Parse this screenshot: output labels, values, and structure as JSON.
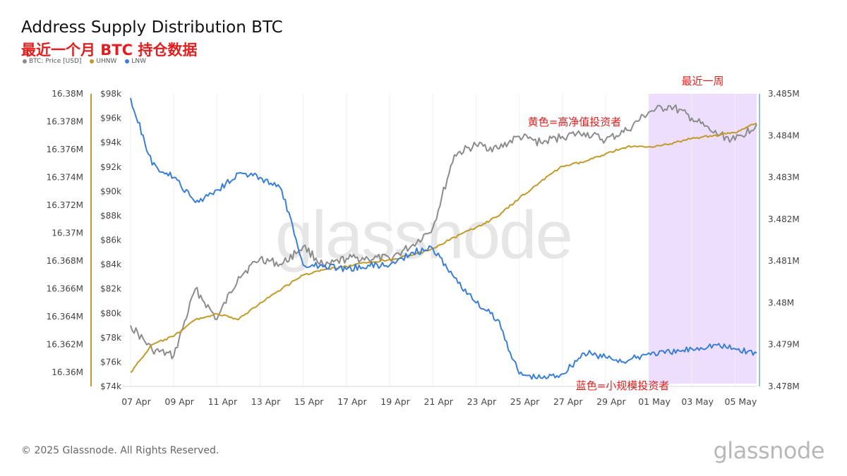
{
  "header": {
    "title": "Address Supply Distribution BTC",
    "subtitle": "最近一个月 BTC 持仓数据"
  },
  "legend": [
    {
      "label": "BTC: Price [USD]",
      "color": "#8c8c8c"
    },
    {
      "label": "UHNW",
      "color": "#c19a2a"
    },
    {
      "label": "LNW",
      "color": "#3a7fd5"
    }
  ],
  "footer": {
    "copyright": "© 2025 Glassnode. All Rights Reserved.",
    "brand": "glassnode"
  },
  "colors": {
    "price": "#8c8c8c",
    "uhnw": "#c19a2a",
    "lnw": "#3a7fd5",
    "highlight": "#e9d8fb",
    "annotation": "#e02020"
  },
  "chart_data": {
    "type": "line",
    "x": [
      "07 Apr",
      "08 Apr",
      "09 Apr",
      "10 Apr",
      "11 Apr",
      "12 Apr",
      "13 Apr",
      "14 Apr",
      "15 Apr",
      "16 Apr",
      "17 Apr",
      "18 Apr",
      "19 Apr",
      "20 Apr",
      "21 Apr",
      "22 Apr",
      "23 Apr",
      "24 Apr",
      "25 Apr",
      "26 Apr",
      "27 Apr",
      "28 Apr",
      "29 Apr",
      "30 Apr",
      "01 May",
      "02 May",
      "03 May",
      "04 May",
      "05 May",
      "06 May"
    ],
    "x_tick_labels": [
      "07 Apr",
      "09 Apr",
      "11 Apr",
      "13 Apr",
      "15 Apr",
      "17 Apr",
      "19 Apr",
      "21 Apr",
      "23 Apr",
      "25 Apr",
      "27 Apr",
      "29 Apr",
      "01 May",
      "03 May",
      "05 May"
    ],
    "axes": {
      "price": {
        "ticks": [
          "$74k",
          "$76k",
          "$78k",
          "$80k",
          "$82k",
          "$84k",
          "$86k",
          "$88k",
          "$90k",
          "$92k",
          "$94k",
          "$96k",
          "$98k"
        ],
        "range": [
          74000,
          98000
        ]
      },
      "uhnw": {
        "ticks": [
          "16.36M",
          "16.362M",
          "16.364M",
          "16.366M",
          "16.368M",
          "16.37M",
          "16.372M",
          "16.374M",
          "16.376M",
          "16.378M",
          "16.38M"
        ],
        "range": [
          16.359,
          16.38
        ]
      },
      "lnw": {
        "ticks": [
          "3.478M",
          "3.479M",
          "3.48M",
          "3.481M",
          "3.482M",
          "3.483M",
          "3.484M",
          "3.485M"
        ],
        "range": [
          3.478,
          3.485
        ]
      }
    },
    "series": [
      {
        "name": "BTC: Price [USD]",
        "axis": "price",
        "values": [
          79000,
          77000,
          76500,
          82000,
          79500,
          83000,
          84500,
          84000,
          85500,
          83800,
          84500,
          84500,
          84500,
          85500,
          87000,
          93000,
          93800,
          93500,
          94500,
          94000,
          94500,
          94800,
          94200,
          95000,
          96500,
          97000,
          96000,
          94800,
          94200,
          95500
        ]
      },
      {
        "name": "UHNW",
        "axis": "uhnw",
        "values": [
          16.36,
          16.362,
          16.3626,
          16.3638,
          16.3642,
          16.3638,
          16.365,
          16.366,
          16.367,
          16.3674,
          16.3676,
          16.3679,
          16.3681,
          16.3684,
          16.3689,
          16.3697,
          16.3704,
          16.3712,
          16.3725,
          16.3737,
          16.3748,
          16.3751,
          16.3757,
          16.3762,
          16.3762,
          16.3764,
          16.3768,
          16.377,
          16.3772,
          16.3779
        ]
      },
      {
        "name": "LNW",
        "axis": "lnw",
        "values": [
          3.4849,
          3.4833,
          3.483,
          3.4824,
          3.4827,
          3.4831,
          3.483,
          3.4827,
          3.4809,
          3.4809,
          3.4808,
          3.4809,
          3.4809,
          3.4812,
          3.4813,
          3.4806,
          3.48,
          3.4796,
          3.4783,
          3.4782,
          3.4783,
          3.4788,
          3.4787,
          3.4786,
          3.4788,
          3.4788,
          3.4789,
          3.479,
          3.4789,
          3.4788
        ]
      }
    ],
    "highlight_region": {
      "from": "01 May",
      "to": "06 May",
      "label": "最近一周"
    },
    "annotations": [
      {
        "text": "黄色=高净值投资者"
      },
      {
        "text": "蓝色=小规模投资者"
      }
    ],
    "grid": true,
    "watermark": "glassnode"
  }
}
